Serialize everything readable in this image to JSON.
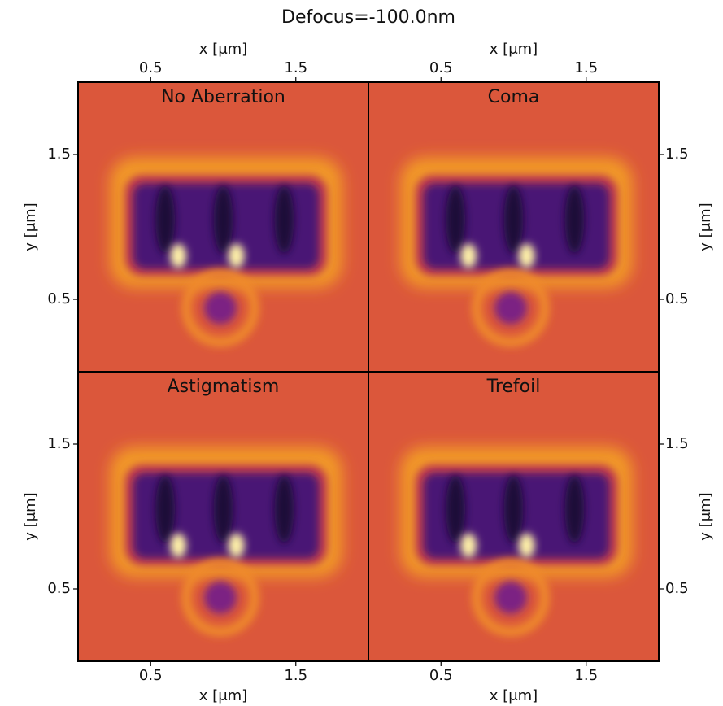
{
  "title": "Defocus=-100.0nm",
  "chart_data": [
    {
      "type": "heatmap",
      "title": "No Aberration",
      "x_label": "x [μm]",
      "y_label": "y [μm]",
      "x_axis": "top",
      "y_axis": "left",
      "xlim": [
        0,
        2.0
      ],
      "ylim": [
        0,
        2.0
      ],
      "xticks": [
        0.5,
        1.5
      ],
      "yticks": [
        0.5,
        1.5
      ]
    },
    {
      "type": "heatmap",
      "title": "Coma",
      "x_label": "x [μm]",
      "y_label": "y [μm]",
      "x_axis": "top",
      "y_axis": "right",
      "xlim": [
        0,
        2.0
      ],
      "ylim": [
        0,
        2.0
      ],
      "xticks": [
        0.5,
        1.5
      ],
      "yticks": [
        0.5,
        1.5
      ]
    },
    {
      "type": "heatmap",
      "title": "Astigmatism",
      "x_label": "x [μm]",
      "y_label": "y [μm]",
      "x_axis": "bottom",
      "y_axis": "left",
      "xlim": [
        0,
        2.0
      ],
      "ylim": [
        0,
        2.0
      ],
      "xticks": [
        0.5,
        1.5
      ],
      "yticks": [
        0.5,
        1.5
      ]
    },
    {
      "type": "heatmap",
      "title": "Trefoil",
      "x_label": "x [μm]",
      "y_label": "y [μm]",
      "x_axis": "bottom",
      "y_axis": "right",
      "xlim": [
        0,
        2.0
      ],
      "ylim": [
        0,
        2.0
      ],
      "xticks": [
        0.5,
        1.5
      ],
      "yticks": [
        0.5,
        1.5
      ]
    }
  ]
}
